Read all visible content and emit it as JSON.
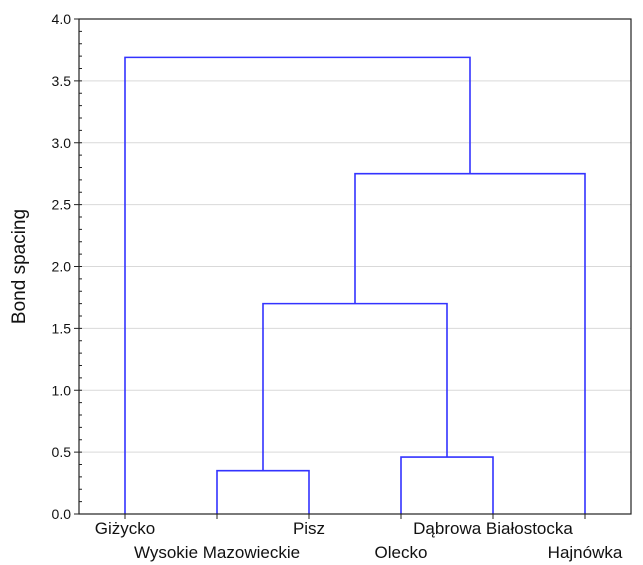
{
  "chart_data": {
    "type": "dendrogram",
    "title": "",
    "xlabel": "",
    "ylabel": "Bond spacing",
    "ylim": [
      0,
      4
    ],
    "yticks": [
      "0.0",
      "0.5",
      "1.0",
      "1.5",
      "2.0",
      "2.5",
      "3.0",
      "3.5",
      "4.0"
    ],
    "grid": true,
    "line_color": "#3333ff",
    "leaves": [
      "Giżycko",
      "Wysokie Mazowieckie",
      "Pisz",
      "Olecko",
      "Dąbrowa Białostocka",
      "Hajnówka"
    ],
    "merges": [
      {
        "left": 2,
        "right": 3,
        "height": 0.35
      },
      {
        "left": 4,
        "right": 5,
        "height": 0.46
      },
      {
        "left": "m0",
        "right": "m1",
        "height": 1.7
      },
      {
        "left": "m2",
        "right": 6,
        "height": 2.75
      },
      {
        "left": 1,
        "right": "m3",
        "height": 3.69
      }
    ]
  }
}
